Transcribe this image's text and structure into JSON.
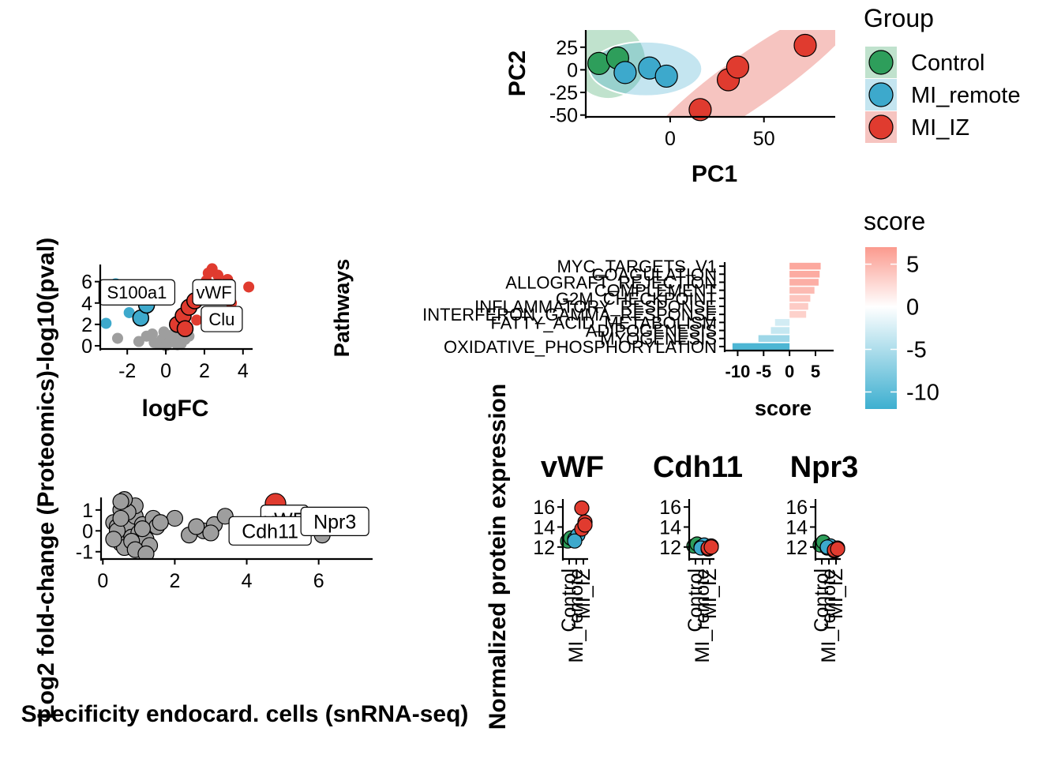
{
  "colors": {
    "control": "#2E9E5B",
    "mi_remote": "#3DA9CC",
    "mi_iz": "#E03B2F",
    "grey": "#9E9E9E",
    "score_high": "#FB9A8E",
    "score_mid": "#FFFFFF",
    "score_low": "#3DAFD0"
  },
  "chart_data": [
    {
      "id": "pca",
      "type": "scatter",
      "xlabel": "PC1",
      "ylabel": "PC2",
      "xlim": [
        -45,
        88
      ],
      "ylim": [
        -52,
        44
      ],
      "xticks": [
        0,
        50
      ],
      "yticks": [
        25,
        0,
        -25,
        -50
      ],
      "legend": {
        "title": "Group",
        "placement": "right",
        "entries": [
          "Control",
          "MI_remote",
          "MI_IZ"
        ]
      },
      "series": [
        {
          "name": "Control",
          "x": [
            -38,
            -28
          ],
          "y": [
            7,
            13
          ]
        },
        {
          "name": "MI_remote",
          "x": [
            -24,
            -11,
            -2
          ],
          "y": [
            -3,
            2,
            -7
          ]
        },
        {
          "name": "MI_IZ",
          "x": [
            16,
            31,
            36,
            72
          ],
          "y": [
            -44,
            -11,
            3,
            27
          ]
        }
      ]
    },
    {
      "id": "volcano",
      "type": "scatter",
      "xlabel": "logFC",
      "ylabel": "-log10(pval)",
      "xlim": [
        -3.4,
        4.5
      ],
      "ylim": [
        -0.3,
        7.6
      ],
      "xticks": [
        -2,
        0,
        2,
        4
      ],
      "yticks": [
        0,
        2,
        4,
        6
      ],
      "labels": [
        "S100a1",
        "vWF",
        "Clu"
      ],
      "series": [
        {
          "name": "grey",
          "x": [
            -2.5,
            -1.4,
            -1.0,
            -0.6,
            -0.2,
            0.1,
            0.4,
            0.6,
            -0.1,
            0.3,
            0.7,
            0.9,
            -0.4,
            0.2,
            0.5,
            1.0,
            0.0,
            -0.7,
            0.8,
            1.2
          ],
          "y": [
            0.7,
            0.4,
            0.9,
            0.3,
            0.6,
            0.2,
            0.5,
            0.1,
            1.3,
            1.0,
            0.8,
            1.4,
            0.2,
            0.4,
            0.3,
            0.6,
            0.0,
            1.1,
            0.2,
            0.9
          ]
        },
        {
          "name": "blue",
          "x": [
            -3.1,
            -2.6,
            -2.3,
            -1.9,
            -1.6,
            -1.3,
            -1.0
          ],
          "y": [
            2.1,
            5.8,
            4.3,
            3.1,
            5.2,
            2.6,
            3.8
          ]
        },
        {
          "name": "red",
          "x": [
            0.6,
            0.9,
            1.2,
            1.5,
            1.8,
            2.1,
            2.4,
            2.7,
            3.0,
            3.4,
            4.3,
            2.2,
            1.0,
            1.6,
            2.6,
            3.2
          ],
          "y": [
            2.0,
            2.8,
            3.6,
            4.2,
            4.9,
            6.1,
            7.2,
            6.6,
            5.1,
            4.0,
            5.5,
            6.8,
            1.6,
            2.4,
            3.2,
            6.2
          ]
        }
      ]
    },
    {
      "id": "specificity",
      "type": "scatter",
      "xlabel": "Specificity endocard. cells (snRNA-seq)",
      "ylabel": "Log2 fold-change (Proteomics)",
      "xlim": [
        -0.05,
        7.5
      ],
      "ylim": [
        -1.35,
        1.6
      ],
      "xticks": [
        0,
        2,
        4,
        6
      ],
      "yticks": [
        1,
        0,
        -1
      ],
      "labels": [
        "vWF",
        "Cdh11",
        "Npr3"
      ],
      "series": [
        {
          "name": "grey",
          "x": [
            0.3,
            0.4,
            0.5,
            0.5,
            0.6,
            0.7,
            0.8,
            0.9,
            1.0,
            1.1,
            1.2,
            1.4,
            0.4,
            0.6,
            0.9,
            1.5,
            2.0,
            2.4,
            2.8,
            3.1,
            3.4,
            0.3,
            0.7,
            1.1,
            1.3,
            0.5,
            0.8,
            2.6,
            3.0,
            0.6,
            0.9,
            1.2,
            6.1,
            0.5,
            1.6
          ],
          "y": [
            0.4,
            0.2,
            -0.6,
            1.0,
            0.5,
            0.1,
            -0.3,
            0.7,
            -0.1,
            0.3,
            -0.4,
            0.6,
            0.0,
            -0.8,
            1.2,
            0.2,
            0.6,
            -0.2,
            0.0,
            0.3,
            0.7,
            -0.4,
            0.9,
            0.1,
            -0.7,
            0.6,
            -0.5,
            0.2,
            -0.1,
            1.5,
            -0.9,
            -1.1,
            -0.2,
            1.4,
            0.4
          ]
        },
        {
          "name": "red",
          "x": [
            4.8
          ],
          "y": [
            1.3
          ]
        }
      ]
    },
    {
      "id": "pathways",
      "type": "bar",
      "orientation": "horizontal",
      "xlabel": "score",
      "ylabel": "Pathways",
      "xlim": [
        -12.5,
        8.5
      ],
      "xticks": [
        -10,
        -5,
        0,
        5
      ],
      "categories": [
        "MYC_TARGETS_V1",
        "COAGULATION",
        "ALLOGRAFT_REJECTION",
        "COMPLEMENT",
        "G2M_CHECKPOINT",
        "INFLAMMATORY_RESPONSE",
        "INTERFERON_GAMMA_RESPONSE",
        "FATTY_ACID_METABOLISM",
        "ADIPOGENESIS",
        "MYOGENESIS",
        "OXIDATIVE_PHOSPHORYLATION"
      ],
      "values": [
        6.0,
        5.8,
        5.6,
        4.8,
        4.0,
        3.6,
        3.2,
        -2.8,
        -3.6,
        -6.0,
        -11.0
      ],
      "colorbar": {
        "title": "score",
        "ticks": [
          5,
          0,
          -5,
          -10
        ],
        "range": [
          -12,
          7
        ]
      }
    },
    {
      "id": "vwf",
      "type": "scatter",
      "title": "vWF",
      "ylabel": "Normalized protein expression",
      "categories": [
        "Control",
        "MI_remote",
        "MI_IZ"
      ],
      "ylim": [
        10.8,
        16.8
      ],
      "yticks": [
        16,
        14,
        12
      ],
      "series": [
        {
          "name": "Control",
          "x": [
            "Control",
            "Control"
          ],
          "y": [
            12.6,
            12.9
          ]
        },
        {
          "name": "MI_remote",
          "x": [
            "MI_remote",
            "MI_remote",
            "MI_remote"
          ],
          "y": [
            12.8,
            13.2,
            12.6
          ]
        },
        {
          "name": "MI_IZ",
          "x": [
            "MI_IZ",
            "MI_IZ",
            "MI_IZ",
            "MI_IZ"
          ],
          "y": [
            13.8,
            14.5,
            15.9,
            14.2
          ]
        }
      ]
    },
    {
      "id": "cdh11",
      "type": "scatter",
      "title": "Cdh11",
      "categories": [
        "Control",
        "MI_remote",
        "MI_IZ"
      ],
      "ylim": [
        10.8,
        16.8
      ],
      "yticks": [
        16,
        14,
        12
      ],
      "series": [
        {
          "name": "Control",
          "x": [
            "Control",
            "Control"
          ],
          "y": [
            12.1,
            12.3
          ]
        },
        {
          "name": "MI_remote",
          "x": [
            "MI_remote",
            "MI_remote",
            "MI_remote"
          ],
          "y": [
            12.0,
            12.2,
            11.9
          ]
        },
        {
          "name": "MI_IZ",
          "x": [
            "MI_IZ",
            "MI_IZ",
            "MI_IZ",
            "MI_IZ"
          ],
          "y": [
            11.8,
            12.1,
            11.9,
            12.0
          ]
        }
      ]
    },
    {
      "id": "npr3",
      "type": "scatter",
      "title": "Npr3",
      "categories": [
        "Control",
        "MI_remote",
        "MI_IZ"
      ],
      "ylim": [
        10.8,
        16.8
      ],
      "yticks": [
        16,
        14,
        12
      ],
      "series": [
        {
          "name": "Control",
          "x": [
            "Control",
            "Control"
          ],
          "y": [
            12.2,
            12.5
          ]
        },
        {
          "name": "MI_remote",
          "x": [
            "MI_remote",
            "MI_remote",
            "MI_remote"
          ],
          "y": [
            11.9,
            12.1,
            12.0
          ]
        },
        {
          "name": "MI_IZ",
          "x": [
            "MI_IZ",
            "MI_IZ",
            "MI_IZ",
            "MI_IZ"
          ],
          "y": [
            11.6,
            11.9,
            11.7,
            11.8
          ]
        }
      ]
    }
  ]
}
